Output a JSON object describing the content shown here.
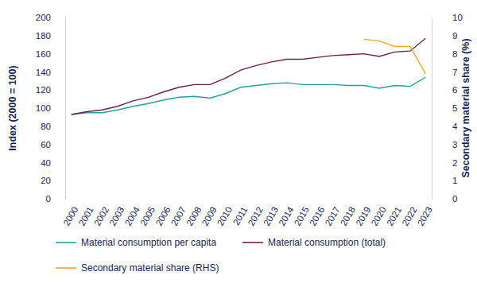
{
  "chart_data": {
    "type": "line",
    "y_label": "Index (2000 = 100)",
    "y2_label": "Secondary material share (%)",
    "categories": [
      "2000",
      "2001",
      "2002",
      "2003",
      "2004",
      "2005",
      "2006",
      "2007",
      "2008",
      "2009",
      "2010",
      "2011",
      "2012",
      "2013",
      "2014",
      "2015",
      "2016",
      "2017",
      "2018",
      "2019",
      "2020",
      "2021",
      "2022",
      "2023"
    ],
    "ylim": [
      0,
      200
    ],
    "yticks": [
      0,
      20,
      40,
      60,
      80,
      100,
      120,
      140,
      160,
      180,
      200
    ],
    "y2lim": [
      0,
      10
    ],
    "y2ticks": [
      0,
      1,
      2,
      3,
      4,
      5,
      6,
      7,
      8,
      9,
      10
    ],
    "grid": false,
    "legend": "bottom",
    "series": [
      {
        "name": "Material consumption per capita",
        "color": "#1fa39a",
        "values": [
          93,
          95,
          95,
          98,
          102,
          105,
          109,
          112,
          113,
          111,
          116,
          123,
          125,
          127,
          128,
          126,
          126,
          126,
          125,
          125,
          122,
          125,
          124,
          134
        ]
      },
      {
        "name": "Material consumption (total)",
        "color": "#6b1f4f",
        "values": [
          93,
          96,
          98,
          102,
          108,
          112,
          118,
          123,
          126,
          126,
          133,
          142,
          147,
          151,
          154,
          154,
          156,
          158,
          159,
          160,
          157,
          162,
          163,
          177
        ]
      },
      {
        "name": "Secondary material share (RHS)",
        "color": "#f5a623",
        "axis": "y2",
        "values": [
          null,
          null,
          null,
          null,
          null,
          null,
          null,
          null,
          null,
          null,
          null,
          null,
          null,
          null,
          null,
          null,
          null,
          null,
          null,
          8.8,
          8.7,
          8.4,
          8.4,
          6.9
        ]
      }
    ]
  }
}
